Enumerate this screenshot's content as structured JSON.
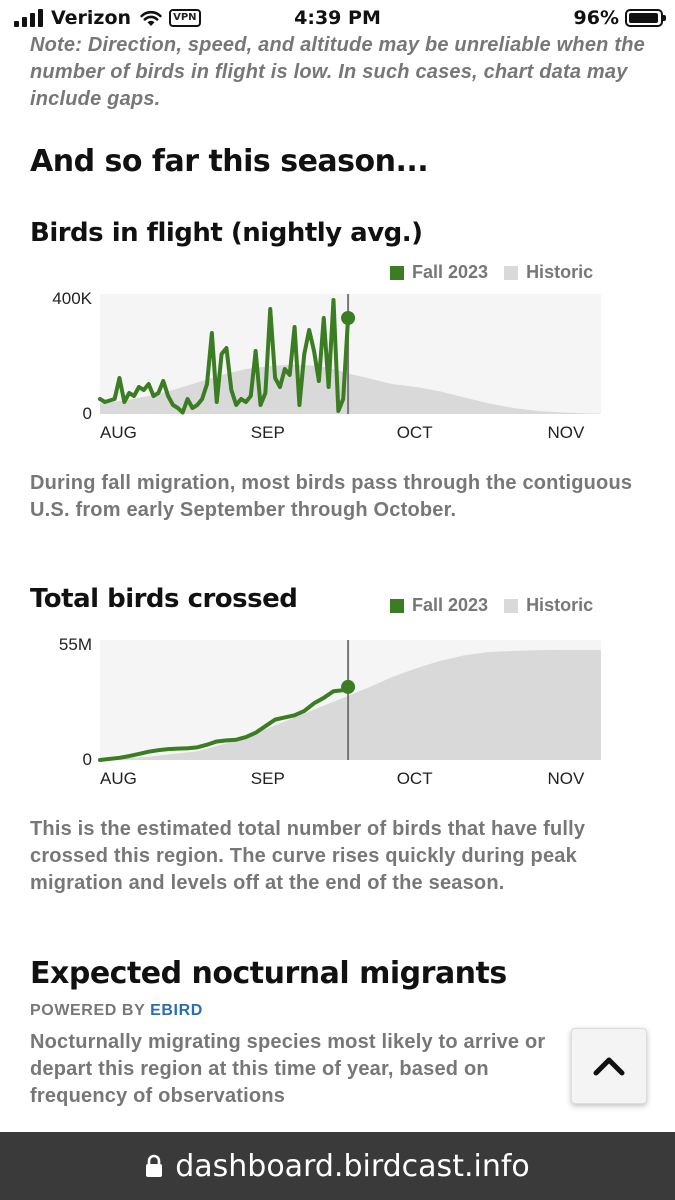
{
  "status_bar": {
    "carrier": "Verizon",
    "vpn": "VPN",
    "time": "4:39 PM",
    "battery_pct": "96%",
    "battery_level": 0.96
  },
  "note": "Note: Direction, speed, and altitude may be unreliable when the number of birds in flight is low. In such cases, chart data may include gaps.",
  "season_heading": "And so far this season...",
  "flight_section": {
    "title": "Birds in flight (nightly avg.)",
    "legend": [
      {
        "label": "Fall 2023",
        "color": "#3a7d22"
      },
      {
        "label": "Historic",
        "color": "#d9d9d9"
      }
    ],
    "description": "During fall migration, most birds pass through the contiguous U.S. from early September through October."
  },
  "total_section": {
    "title": "Total birds crossed",
    "legend": [
      {
        "label": "Fall 2023",
        "color": "#3a7d22"
      },
      {
        "label": "Historic",
        "color": "#d9d9d9"
      }
    ],
    "description": "This is the estimated total number of birds that have fully crossed this region. The curve rises quickly during peak migration and levels off at the end of the season."
  },
  "expected_section": {
    "title": "Expected nocturnal migrants",
    "powered_by": "POWERED BY",
    "powered_source": "EBIRD",
    "description": "Nocturnally migrating species most likely to arrive or depart this region at this time of year, based on frequency of observations"
  },
  "url": "dashboard.birdcast.info",
  "chart_data": [
    {
      "type": "line",
      "x_ticks": [
        "AUG",
        "SEP",
        "OCT",
        "NOV"
      ],
      "y_ticks": [
        "0",
        "400K"
      ],
      "ylim": [
        0,
        400000
      ],
      "x_unit": "days since Aug 1",
      "xlim": [
        0,
        103
      ],
      "today_marker": 51,
      "series": [
        {
          "name": "Historic",
          "type": "area",
          "color": "#d9d9d9",
          "x": [
            0,
            5,
            10,
            15,
            20,
            25,
            30,
            35,
            40,
            45,
            48,
            51,
            55,
            60,
            65,
            70,
            75,
            80,
            85,
            90,
            95,
            100,
            103
          ],
          "y": [
            35000,
            45000,
            60000,
            80000,
            105000,
            130000,
            150000,
            160000,
            165000,
            160000,
            150000,
            135000,
            120000,
            100000,
            90000,
            75000,
            55000,
            35000,
            20000,
            10000,
            5000,
            2000,
            1000
          ]
        },
        {
          "name": "Fall 2023",
          "type": "line",
          "color": "#3a7d22",
          "x": [
            0,
            1,
            2,
            3,
            4,
            5,
            6,
            7,
            8,
            9,
            10,
            11,
            12,
            13,
            14,
            15,
            16,
            17,
            18,
            19,
            20,
            21,
            22,
            23,
            24,
            25,
            26,
            27,
            28,
            29,
            30,
            31,
            32,
            33,
            34,
            35,
            36,
            37,
            38,
            39,
            40,
            41,
            42,
            43,
            44,
            45,
            46,
            47,
            48,
            49,
            50,
            51
          ],
          "y": [
            50000,
            40000,
            45000,
            50000,
            120000,
            40000,
            70000,
            60000,
            90000,
            80000,
            100000,
            60000,
            70000,
            110000,
            60000,
            30000,
            20000,
            5000,
            50000,
            20000,
            30000,
            50000,
            100000,
            270000,
            40000,
            200000,
            220000,
            80000,
            30000,
            50000,
            40000,
            60000,
            210000,
            30000,
            70000,
            350000,
            120000,
            90000,
            150000,
            130000,
            290000,
            30000,
            200000,
            280000,
            210000,
            110000,
            320000,
            90000,
            380000,
            10000,
            50000,
            320000
          ]
        }
      ]
    },
    {
      "type": "line",
      "x_ticks": [
        "AUG",
        "SEP",
        "OCT",
        "NOV"
      ],
      "y_ticks": [
        "0",
        "55M"
      ],
      "ylim": [
        0,
        55000000
      ],
      "x_unit": "days since Aug 1",
      "xlim": [
        0,
        103
      ],
      "today_marker": 51,
      "series": [
        {
          "name": "Historic",
          "type": "area",
          "color": "#d9d9d9",
          "x": [
            0,
            10,
            20,
            25,
            30,
            35,
            40,
            45,
            50,
            55,
            60,
            65,
            70,
            75,
            80,
            85,
            90,
            95,
            103
          ],
          "y": [
            0,
            1500000,
            4000000,
            7000000,
            10500000,
            15000000,
            19500000,
            24000000,
            28500000,
            33000000,
            38000000,
            42000000,
            45500000,
            48000000,
            49500000,
            50000000,
            50300000,
            50500000,
            50500000
          ]
        },
        {
          "name": "Fall 2023",
          "type": "line",
          "color": "#3a7d22",
          "x": [
            0,
            2,
            4,
            6,
            8,
            10,
            12,
            14,
            16,
            18,
            20,
            22,
            24,
            26,
            28,
            30,
            32,
            34,
            36,
            38,
            40,
            42,
            44,
            46,
            48,
            50,
            51
          ],
          "y": [
            0,
            500000,
            1000000,
            1800000,
            2800000,
            3800000,
            4500000,
            5000000,
            5200000,
            5400000,
            5800000,
            7000000,
            8500000,
            9000000,
            9300000,
            10500000,
            12500000,
            15500000,
            18500000,
            19500000,
            20500000,
            22500000,
            26000000,
            28500000,
            31500000,
            32000000,
            33500000
          ]
        }
      ]
    }
  ]
}
